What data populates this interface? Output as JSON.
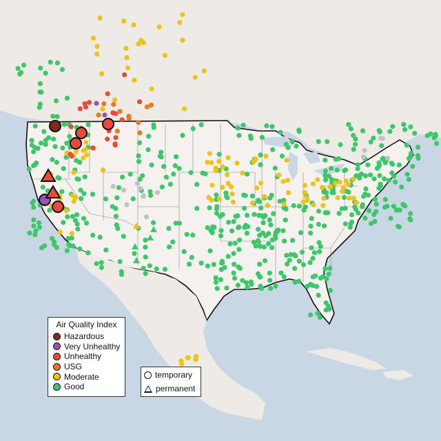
{
  "legend": {
    "title": "Air Quality Index",
    "categories": [
      {
        "label": "Hazardous",
        "color": "#7e2a22"
      },
      {
        "label": "Very Unhealthy",
        "color": "#9454b8"
      },
      {
        "label": "Unhealthy",
        "color": "#ea4a3c"
      },
      {
        "label": "USG",
        "color": "#e87a1f"
      },
      {
        "label": "Moderate",
        "color": "#efc216"
      },
      {
        "label": "Good",
        "color": "#3cc86a"
      }
    ]
  },
  "monitor_types": {
    "temporary": "temporary",
    "permanent": "permanent"
  },
  "colors": {
    "ocean": "#c8d7e3",
    "land": "#eeeae6",
    "us_land": "#f4f1ee",
    "no_data": "#c0c2c6"
  }
}
